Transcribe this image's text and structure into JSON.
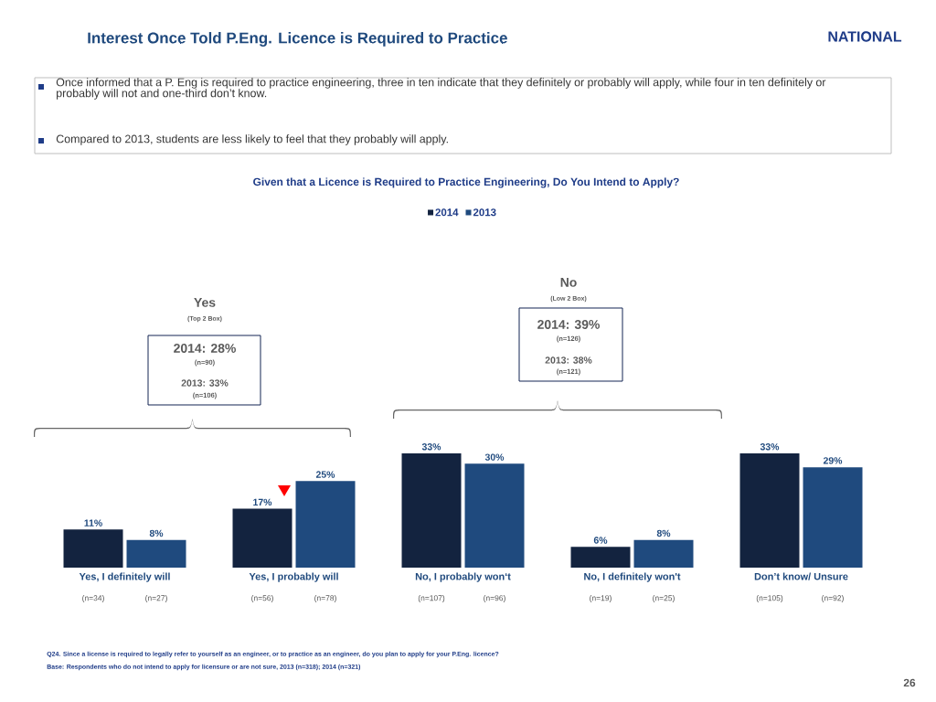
{
  "chart_data": {
    "type": "bar",
    "title": "Interest Once Told P.Eng. Licence is Required to Practice",
    "subtitle": "Given that a Licence is Required to Practice Engineering, Do You Intend to Apply?",
    "categories": [
      "Yes, I definitely will",
      "Yes, I probably will",
      "No, I probably won‘t",
      "No, I definitely won't",
      "Don’t know/ Unsure"
    ],
    "series": [
      {
        "name": "2014",
        "color": "#13233f",
        "values": [
          11,
          17,
          33,
          6,
          33
        ],
        "value_labels": [
          "11%",
          "17%",
          "33%",
          "6%",
          "33%"
        ]
      },
      {
        "name": "2013",
        "color": "#1f4a7e",
        "values": [
          8,
          25,
          30,
          8,
          29
        ],
        "value_labels": [
          "8%",
          "25%",
          "30%",
          "8%",
          "29%"
        ]
      }
    ],
    "legend": "top",
    "annotations": [
      "(n=34)",
      "(n=27)",
      "(n=56)",
      "(n=78)",
      "(n=107)",
      "(n=96)",
      "(n=19)",
      "(n=25)",
      "(n=105)",
      "(n=92)",
      "Yes",
      "(Top 2 Box)",
      "2014: 28%",
      "(n=90)",
      "2013: 33%",
      "(n=106)",
      "No",
      "(Low 2 Box)",
      "2014: 39%",
      "(n=126)",
      "2013: 38%",
      "(n=121)",
      "Q24. Since a license is required to legally refer to yourself as an engineer, or to practice as an engineer, do you plan to apply for your P.Eng. licence?",
      "Base:  Respondents who do not intend to apply for licensure or are not sure, 2013 (n=318); 2014 (n=321)",
      "26",
      "NATIONAL",
      "Once informed that a P. Eng is required to practice engineering, three in ten indicate that they definitely or probably will apply, while four in ten definitely or probably will not and one-third don’t know.",
      "Compared to 2013, students are less likely to feel that they probably will apply."
    ]
  }
}
